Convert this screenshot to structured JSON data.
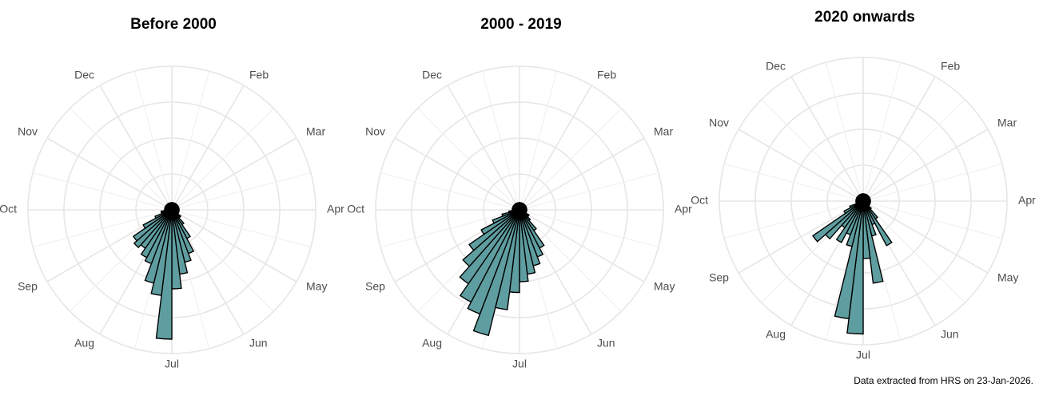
{
  "chart_data": [
    {
      "type": "polar_bar",
      "title": "Before 2000",
      "theta_labels": [
        null,
        "Feb",
        "Mar",
        "Apr",
        "May",
        "Jun",
        "Jul",
        "Aug",
        "Sep",
        "Oct",
        "Nov",
        "Dec"
      ],
      "values": [
        0.2,
        0.2,
        0.2,
        0.2,
        0.2,
        0.2,
        0.2,
        0.2,
        0.2,
        0.2,
        0.2,
        0.2,
        0.2,
        0.2,
        0.2,
        0.2,
        0.2,
        0.2,
        0.3,
        0.3,
        0.5,
        0.9,
        1.3,
        1.5,
        1.8,
        2.2,
        3.6,
        2.4,
        2.1,
        1.6,
        1.5,
        1.3,
        1.4,
        1.3,
        0.9,
        0.5,
        0.3,
        0.3,
        0.2,
        0.2,
        0.2,
        0.2,
        0.2,
        0.2,
        0.2,
        0.2,
        0.2,
        0.2,
        0.2,
        0.2,
        0.2,
        0.2
      ],
      "color": "#5f9ea0",
      "ylim": [
        0,
        4
      ],
      "yticks": [
        1,
        2,
        3,
        4
      ],
      "grid": true
    },
    {
      "type": "polar_bar",
      "title": "2000 - 2019",
      "theta_labels": [
        null,
        "Feb",
        "Mar",
        "Apr",
        "May",
        "Jun",
        "Jul",
        "Aug",
        "Sep",
        "Oct",
        "Nov",
        "Dec"
      ],
      "values": [
        0.2,
        0.2,
        0.2,
        0.2,
        0.2,
        0.2,
        0.2,
        0.2,
        0.2,
        0.2,
        0.2,
        0.2,
        0.2,
        0.2,
        0.2,
        0.2,
        0.2,
        0.3,
        0.3,
        0.4,
        0.7,
        1.2,
        1.4,
        1.6,
        1.8,
        2.0,
        2.3,
        2.8,
        3.6,
        3.1,
        2.9,
        2.5,
        2.1,
        1.7,
        1.2,
        0.8,
        0.5,
        0.3,
        0.2,
        0.2,
        0.2,
        0.2,
        0.2,
        0.2,
        0.2,
        0.2,
        0.2,
        0.2,
        0.2,
        0.2,
        0.2,
        0.2
      ],
      "color": "#5f9ea0",
      "ylim": [
        0,
        4
      ],
      "yticks": [
        1,
        2,
        3,
        4
      ],
      "grid": true
    },
    {
      "type": "polar_bar",
      "title": "2020 onwards",
      "theta_labels": [
        null,
        "Feb",
        "Mar",
        "Apr",
        "May",
        "Jun",
        "Jul",
        "Aug",
        "Sep",
        "Oct",
        "Nov",
        "Dec"
      ],
      "values": [
        0.2,
        0.2,
        0.2,
        0.2,
        0.2,
        0.2,
        0.2,
        0.2,
        0.2,
        0.2,
        0.2,
        0.2,
        0.2,
        0.2,
        0.2,
        0.2,
        0.2,
        0.2,
        0.2,
        0.3,
        0.6,
        1.4,
        0.7,
        1.0,
        2.3,
        1.6,
        3.7,
        3.3,
        1.3,
        1.0,
        1.3,
        0.9,
        1.4,
        1.7,
        0.6,
        0.4,
        0.2,
        0.2,
        0.2,
        0.2,
        0.2,
        0.2,
        0.2,
        0.2,
        0.2,
        0.2,
        0.2,
        0.2,
        0.2,
        0.2,
        0.2,
        0.2
      ],
      "color": "#5f9ea0",
      "ylim": [
        0,
        4
      ],
      "yticks": [
        1,
        2,
        3,
        4
      ],
      "grid": true
    }
  ],
  "caption": "Data extracted from HRS on 23-Jan-2026."
}
